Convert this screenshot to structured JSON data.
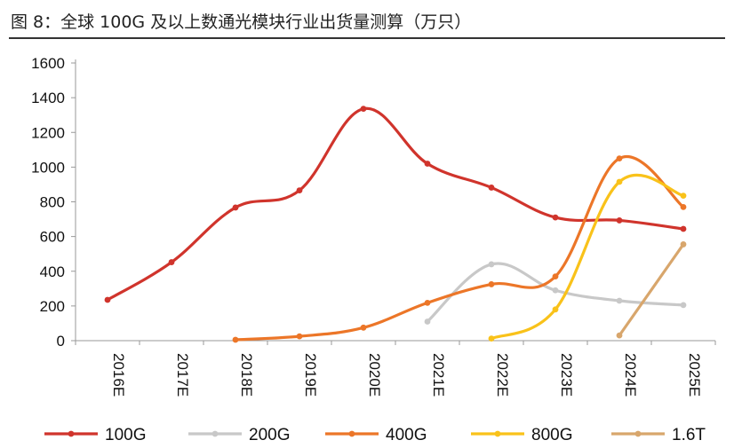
{
  "figure": {
    "title": "图 8：全球 100G 及以上数通光模块行业出货量测算（万只）"
  },
  "chart_data": {
    "type": "line",
    "title": "图 8：全球 100G 及以上数通光模块行业出货量测算（万只）",
    "xlabel": "",
    "ylabel": "",
    "categories": [
      "2016E",
      "2017E",
      "2018E",
      "2019E",
      "2020E",
      "2021E",
      "2022E",
      "2023E",
      "2024E",
      "2025E"
    ],
    "ylim": [
      0,
      1600
    ],
    "yticks": [
      0,
      200,
      400,
      600,
      800,
      1000,
      1200,
      1400,
      1600
    ],
    "grid": false,
    "legend": "bottom",
    "series": [
      {
        "name": "100G",
        "color": "#d0342c",
        "values": [
          235,
          452,
          767,
          866,
          1336,
          1020,
          882,
          710,
          693,
          644
        ]
      },
      {
        "name": "200G",
        "color": "#c8c8c8",
        "values": [
          null,
          null,
          null,
          null,
          null,
          110,
          440,
          290,
          230,
          205
        ]
      },
      {
        "name": "400G",
        "color": "#ec7628",
        "values": [
          null,
          null,
          5,
          25,
          75,
          218,
          325,
          370,
          1050,
          770
        ]
      },
      {
        "name": "800G",
        "color": "#f9c21a",
        "values": [
          null,
          null,
          null,
          null,
          null,
          null,
          12,
          180,
          915,
          835
        ]
      },
      {
        "name": "1.6T",
        "color": "#d8a66c",
        "values": [
          null,
          null,
          null,
          null,
          null,
          null,
          null,
          null,
          30,
          555
        ]
      }
    ]
  }
}
